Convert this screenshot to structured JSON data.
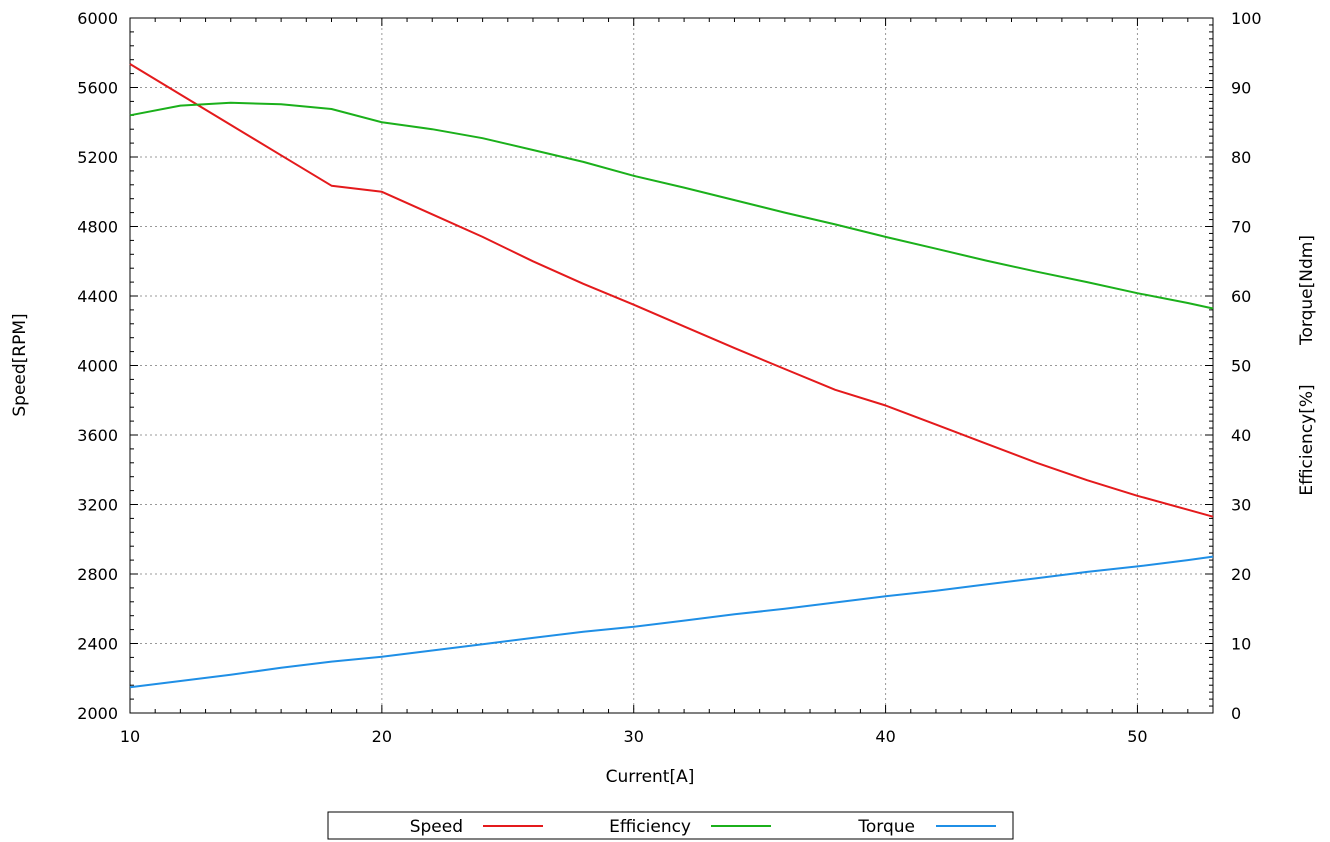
{
  "chart_data": {
    "type": "line",
    "xlabel": "Current[A]",
    "ylabel_left": "Speed[RPM]",
    "ylabel_right_1": "Efficiency[%]",
    "ylabel_right_2": "Torque[Ndm]",
    "xlim": [
      10,
      53
    ],
    "ylim_left": [
      2000,
      6000
    ],
    "ylim_right": [
      0,
      100
    ],
    "x_ticks": [
      "10",
      "20",
      "30",
      "40",
      "50"
    ],
    "y_left_ticks": [
      "2000",
      "2400",
      "2800",
      "3200",
      "3600",
      "4000",
      "4400",
      "4800",
      "5200",
      "5600",
      "6000"
    ],
    "y_right_ticks": [
      "0",
      "10",
      "20",
      "30",
      "40",
      "50",
      "60",
      "70",
      "80",
      "90",
      "100"
    ],
    "grid": true,
    "legend_position": "bottom",
    "x": [
      10,
      12,
      14,
      16,
      18,
      20,
      22,
      24,
      26,
      28,
      30,
      32,
      34,
      36,
      38,
      40,
      42,
      44,
      46,
      48,
      50,
      52,
      53
    ],
    "series": [
      {
        "name": "Speed",
        "axis": "left",
        "color": "#e41a1c",
        "values": [
          5735,
          5560,
          5385,
          5210,
          5035,
          5000,
          4870,
          4740,
          4600,
          4470,
          4350,
          4225,
          4100,
          3980,
          3860,
          3770,
          3660,
          3550,
          3440,
          3340,
          3250,
          3170,
          3130
        ]
      },
      {
        "name": "Efficiency",
        "axis": "right",
        "color": "#1bb01b",
        "values": [
          86.0,
          87.4,
          87.8,
          87.6,
          86.9,
          85.0,
          84.0,
          82.7,
          81.0,
          79.3,
          77.3,
          75.6,
          73.8,
          72.0,
          70.3,
          68.5,
          66.8,
          65.1,
          63.5,
          62.0,
          60.4,
          59.0,
          58.2
        ]
      },
      {
        "name": "Torque",
        "axis": "right",
        "color": "#1f8fe6",
        "values": [
          3.7,
          4.6,
          5.5,
          6.5,
          7.4,
          8.1,
          9.0,
          9.9,
          10.8,
          11.7,
          12.4,
          13.3,
          14.2,
          15.0,
          15.9,
          16.8,
          17.6,
          18.5,
          19.4,
          20.3,
          21.1,
          22.0,
          22.5
        ]
      }
    ]
  }
}
